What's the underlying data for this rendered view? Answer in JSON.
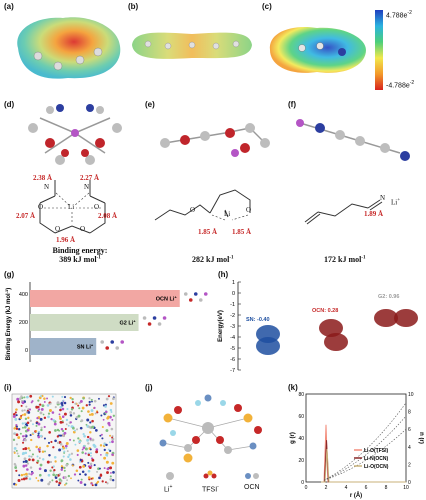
{
  "panels": {
    "a": "(a)",
    "b": "(b)",
    "c": "(c)",
    "d": "(d)",
    "e": "(e)",
    "f": "(f)",
    "g": "(g)",
    "h": "(h)",
    "i": "(i)",
    "j": "(j)",
    "k": "(k)"
  },
  "esp_scale": {
    "max": "4.788e",
    "max_sup": "-2",
    "min": "-4.788e",
    "min_sup": "-2",
    "colors": [
      "#1f3fbf",
      "#2bb3e0",
      "#4ccf7a",
      "#f2e84c",
      "#f39a2a",
      "#d8231d"
    ]
  },
  "d_struct": {
    "bond_tl": "2.38 Å",
    "bond_tr": "2.27 Å",
    "bond_ml": "2.07 Å",
    "bond_mr": "2.08 Å",
    "bond_b": "1.96 Å",
    "metal": "Li",
    "n_left": "N",
    "n_right": "N",
    "o1": "O",
    "o2": "O",
    "o3": "O",
    "o4": "O"
  },
  "e_struct": {
    "bond_l": "1.85 Å",
    "bond_r": "1.85 Å",
    "metal": "Li",
    "o1": "O",
    "o2": "O"
  },
  "f_struct": {
    "bond": "1.89 Å",
    "n": "N",
    "li": "Li",
    "li_sup": "+"
  },
  "energies": {
    "d_label": "Binding energy:",
    "d_value": "389 kJ mol",
    "d_sup": "-1",
    "e_value": "282 kJ mol",
    "e_sup": "-1",
    "f_value": "172 kJ mol",
    "f_sup": "-1"
  },
  "chart_g": {
    "ylabel": "Binding Energy (kJ mol",
    "ylabel_sup": "-1",
    "ylabel_end": ")",
    "yticks": [
      "400",
      "200",
      "0"
    ],
    "bars": [
      {
        "label": "OCN Li",
        "label_sup": "+",
        "value": 389,
        "color": "#f2a7a3"
      },
      {
        "label": "G2 Li",
        "label_sup": "+",
        "value": 282,
        "color": "#cfdcc4"
      },
      {
        "label": "SN Li",
        "label_sup": "+",
        "value": 172,
        "color": "#9fb3c9"
      }
    ]
  },
  "chart_h": {
    "ylabel": "Energy(eV)",
    "yticks": [
      "1",
      "0",
      "-1",
      "-2",
      "-3",
      "-4",
      "-5",
      "-6",
      "-7"
    ],
    "labels": [
      {
        "text": "SN: -0.40",
        "color": "#1e4fa0"
      },
      {
        "text": "OCN: 0.28",
        "color": "#c62828"
      },
      {
        "text": "G2: 0.96",
        "color": "#9a9a9a"
      }
    ]
  },
  "j_legend": {
    "li": "Li",
    "li_sup": "+",
    "tfsi": "TFSI",
    "tfsi_sup": "-",
    "ocn": "OCN"
  },
  "chart_k": {
    "xlabel": "r (Å)",
    "ylabel_left": "g (r)",
    "ylabel_right": "n (r)",
    "xticks": [
      "0",
      "2",
      "4",
      "6",
      "8",
      "10"
    ],
    "yticks_left": [
      "0",
      "20",
      "40",
      "60",
      "80"
    ],
    "yticks_right": [
      "0",
      "2",
      "4",
      "6",
      "8",
      "10"
    ],
    "legend": [
      "Li-O(TFSI)",
      "Li-N(OCN)",
      "Li-O(OCN)"
    ],
    "colors": [
      "#f28c7a",
      "#8b2a2a",
      "#c8b27a"
    ]
  }
}
